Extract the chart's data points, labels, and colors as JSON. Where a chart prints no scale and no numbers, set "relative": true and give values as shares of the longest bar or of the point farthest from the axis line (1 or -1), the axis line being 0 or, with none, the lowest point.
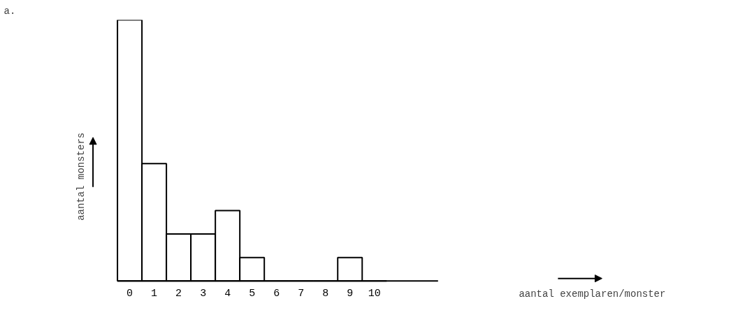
{
  "chart_data": {
    "type": "bar",
    "title": "a.",
    "annotations": [
      "aantal exemplaren/monster"
    ],
    "ylabel": "aantal monsters",
    "categories": [
      "0",
      "1",
      "2",
      "3",
      "4",
      "5",
      "6",
      "7",
      "8",
      "9",
      "10"
    ],
    "values": [
      1,
      0.45,
      0.18,
      0.18,
      0.27,
      0.09,
      0,
      0,
      0,
      0.09,
      0
    ],
    "color": "#ffffff",
    "relative": true
  }
}
